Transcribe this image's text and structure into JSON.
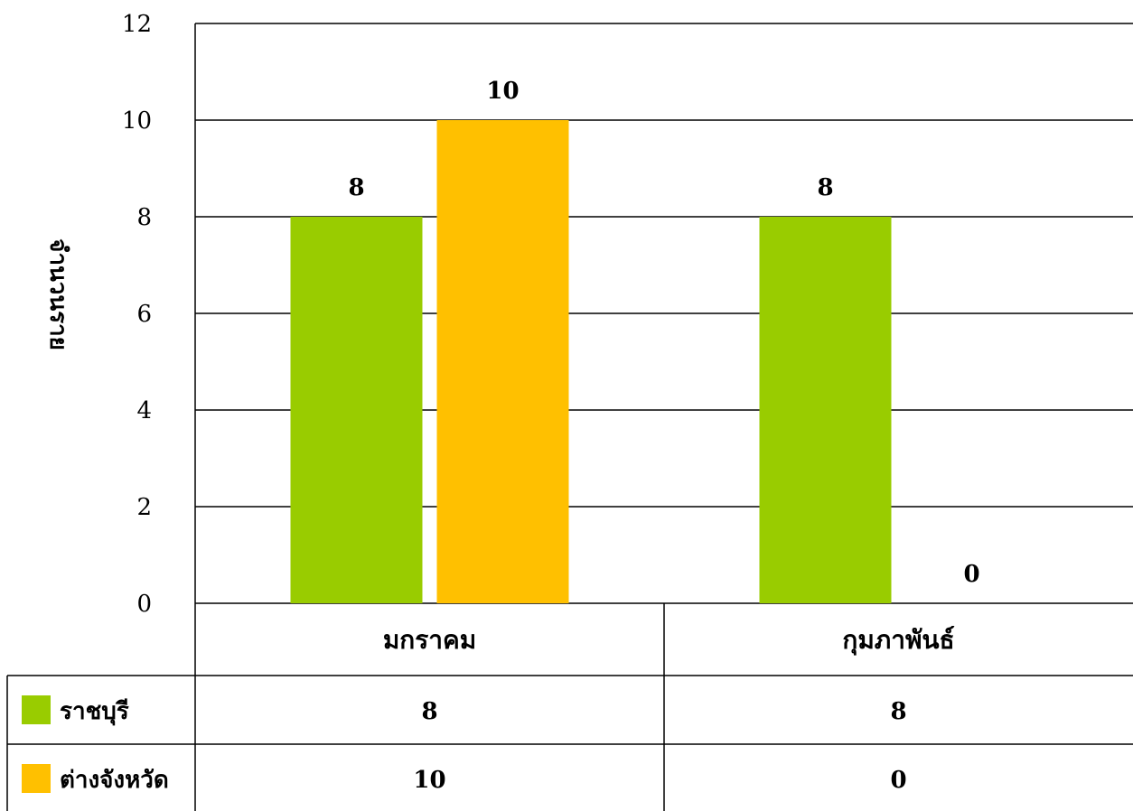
{
  "chart_data": {
    "type": "bar",
    "ylabel": "จำนวนราย",
    "categories": [
      "มกราคม",
      "กุมภาพันธ์"
    ],
    "series": [
      {
        "name": "ราชบุรี",
        "color": "#99CC00",
        "values": [
          8,
          8
        ]
      },
      {
        "name": "ต่างจังหวัด",
        "color": "#FFC000",
        "values": [
          10,
          0
        ]
      }
    ],
    "ylim": [
      0,
      12
    ],
    "yticks": [
      0,
      2,
      4,
      6,
      8,
      10,
      12
    ],
    "grid": true,
    "data_table": true
  }
}
